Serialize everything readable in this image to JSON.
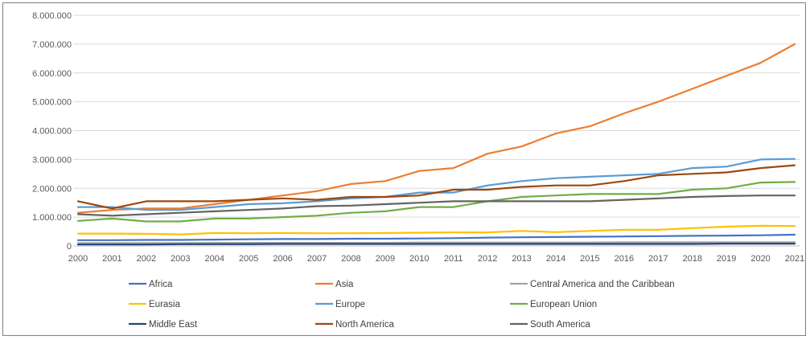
{
  "chart_data": {
    "type": "line",
    "title": "",
    "xlabel": "",
    "ylabel": "",
    "ylim": [
      0,
      8000000
    ],
    "y_ticks": [
      0,
      1000000,
      2000000,
      3000000,
      4000000,
      5000000,
      6000000,
      7000000,
      8000000
    ],
    "y_tick_labels": [
      "0",
      "1.000.000",
      "2.000.000",
      "3.000.000",
      "4.000.000",
      "5.000.000",
      "6.000.000",
      "7.000.000",
      "8.000.000"
    ],
    "x": [
      "2000",
      "2001",
      "2002",
      "2003",
      "2004",
      "2005",
      "2006",
      "2007",
      "2008",
      "2009",
      "2010",
      "2011",
      "2012",
      "2013",
      "2014",
      "2015",
      "2016",
      "2017",
      "2018",
      "2019",
      "2020",
      "2021"
    ],
    "grid": "horizontal",
    "legend_position": "bottom",
    "series": [
      {
        "name": "Africa",
        "color": "#4472c4",
        "values": [
          200000,
          200000,
          210000,
          210000,
          220000,
          230000,
          240000,
          240000,
          250000,
          250000,
          260000,
          270000,
          290000,
          300000,
          310000,
          320000,
          330000,
          340000,
          350000,
          360000,
          370000,
          390000
        ]
      },
      {
        "name": "Asia",
        "color": "#ed7d31",
        "values": [
          1150000,
          1250000,
          1300000,
          1300000,
          1450000,
          1600000,
          1750000,
          1900000,
          2150000,
          2250000,
          2600000,
          2700000,
          3200000,
          3450000,
          3900000,
          4150000,
          4600000,
          5000000,
          5450000,
          5900000,
          6350000,
          7000000
        ]
      },
      {
        "name": "Central America and the Caribbean",
        "color": "#a5a5a5",
        "values": [
          100000,
          100000,
          100000,
          100000,
          110000,
          110000,
          110000,
          110000,
          110000,
          110000,
          120000,
          120000,
          120000,
          120000,
          120000,
          120000,
          130000,
          130000,
          130000,
          130000,
          130000,
          130000
        ]
      },
      {
        "name": "Eurasia",
        "color": "#ffc000",
        "values": [
          430000,
          430000,
          420000,
          400000,
          450000,
          440000,
          450000,
          440000,
          440000,
          450000,
          460000,
          470000,
          470000,
          520000,
          480000,
          520000,
          560000,
          560000,
          620000,
          670000,
          700000,
          690000
        ]
      },
      {
        "name": "Europe",
        "color": "#5b9bd5",
        "values": [
          1350000,
          1350000,
          1250000,
          1250000,
          1350000,
          1450000,
          1480000,
          1550000,
          1650000,
          1700000,
          1850000,
          1850000,
          2100000,
          2250000,
          2350000,
          2400000,
          2450000,
          2500000,
          2700000,
          2750000,
          3000000,
          3020000
        ]
      },
      {
        "name": "European Union",
        "color": "#70ad47",
        "values": [
          870000,
          950000,
          850000,
          850000,
          950000,
          950000,
          1000000,
          1050000,
          1150000,
          1200000,
          1350000,
          1350000,
          1550000,
          1700000,
          1750000,
          1800000,
          1800000,
          1800000,
          1950000,
          2000000,
          2200000,
          2220000
        ]
      },
      {
        "name": "Middle East",
        "color": "#264478",
        "values": [
          50000,
          50000,
          50000,
          60000,
          60000,
          60000,
          70000,
          70000,
          70000,
          70000,
          70000,
          70000,
          70000,
          70000,
          70000,
          70000,
          70000,
          70000,
          70000,
          80000,
          80000,
          80000
        ]
      },
      {
        "name": "North America",
        "color": "#9e480e",
        "values": [
          1550000,
          1300000,
          1550000,
          1550000,
          1550000,
          1600000,
          1650000,
          1600000,
          1700000,
          1700000,
          1750000,
          1950000,
          1950000,
          2050000,
          2100000,
          2100000,
          2250000,
          2450000,
          2500000,
          2550000,
          2700000,
          2800000
        ]
      },
      {
        "name": "South America",
        "color": "#636363",
        "values": [
          1100000,
          1050000,
          1100000,
          1150000,
          1200000,
          1250000,
          1300000,
          1380000,
          1400000,
          1450000,
          1500000,
          1550000,
          1550000,
          1550000,
          1550000,
          1550000,
          1600000,
          1650000,
          1700000,
          1730000,
          1750000,
          1750000
        ]
      }
    ]
  }
}
